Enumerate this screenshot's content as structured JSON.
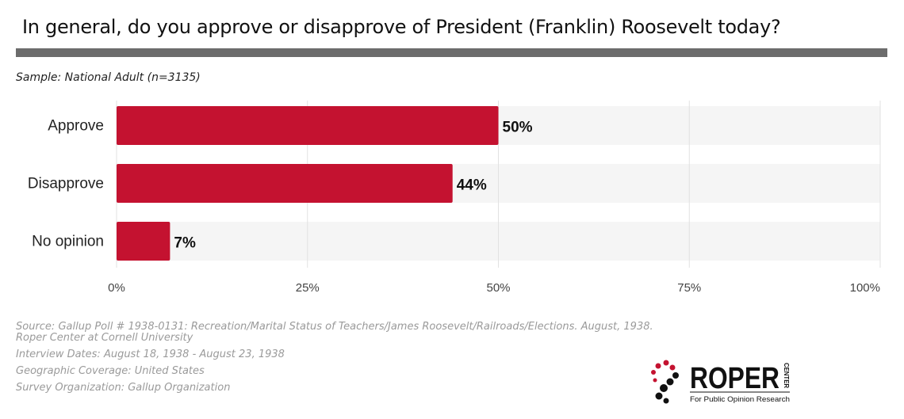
{
  "title": "In general, do you approve or disapprove of President (Franklin) Roosevelt today?",
  "sample": "Sample: National Adult (n=3135)",
  "chart_data": {
    "type": "bar",
    "orientation": "horizontal",
    "categories": [
      "Approve",
      "Disapprove",
      "No opinion"
    ],
    "values": [
      50,
      44,
      7
    ],
    "value_labels": [
      "50%",
      "44%",
      "7%"
    ],
    "xlim": [
      0,
      100
    ],
    "ticks": [
      0,
      25,
      50,
      75,
      100
    ],
    "tick_labels": [
      "0%",
      "25%",
      "50%",
      "75%",
      "100%"
    ],
    "bar_color": "#c41230",
    "track_color": "#f5f5f5",
    "grid": true
  },
  "footer": {
    "source": "Source: Gallup Poll # 1938-0131: Recreation/Marital Status of Teachers/James Roosevelt/Railroads/Elections. August, 1938.",
    "org": "Roper Center at Cornell University",
    "dates": "Interview Dates: August 18, 1938 - August 23, 1938",
    "coverage": "Geographic Coverage: United States",
    "survey_org": "Survey Organization: Gallup Organization"
  },
  "logo": {
    "name": "ROPER",
    "center": "CENTER",
    "tagline": "For Public Opinion Research"
  }
}
